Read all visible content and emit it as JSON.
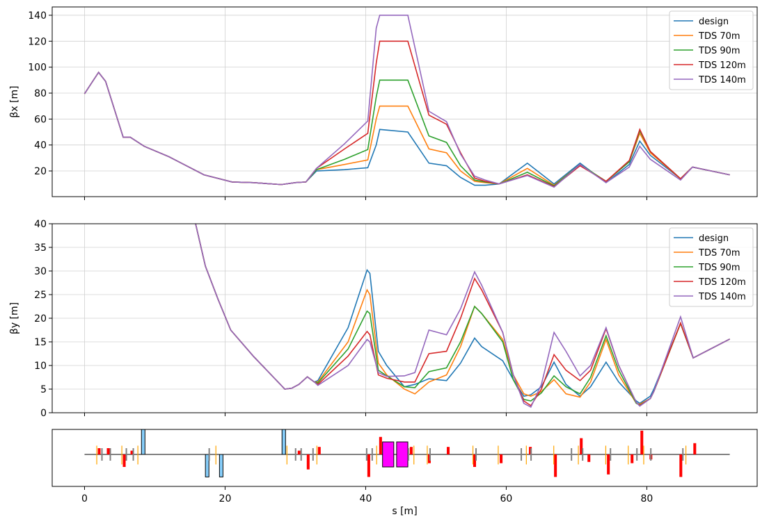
{
  "chart_data": [
    {
      "type": "line",
      "ylabel": "βx [m]",
      "xlim": [
        -4.6,
        95.7
      ],
      "xticks": [
        0,
        20,
        40,
        60,
        80
      ],
      "ylim": [
        0.2,
        146.4
      ],
      "yticks": [
        20,
        40,
        60,
        80,
        100,
        120,
        140
      ],
      "grid": true,
      "legend": "upper right",
      "x": [
        0,
        2,
        3,
        5.5,
        6.5,
        8.5,
        12,
        17,
        21,
        24,
        28,
        30,
        31.5,
        33,
        37,
        40.3,
        41.5,
        42,
        46,
        49,
        51.5,
        53.5,
        55.5,
        57,
        59,
        63,
        66.8,
        70.5,
        74.2,
        77.5,
        79,
        80.5,
        84.8,
        86.5,
        91.8
      ],
      "series": [
        {
          "name": "design",
          "color": "#1f77b4",
          "values": [
            79.5,
            96,
            89,
            46,
            46,
            39,
            31,
            17,
            11.5,
            11,
            9.5,
            11,
            11.5,
            20,
            21,
            22.5,
            40,
            52,
            50,
            26,
            24,
            15,
            9,
            9,
            10,
            26,
            10,
            26,
            11,
            25,
            43,
            32,
            14,
            23,
            17
          ]
        },
        {
          "name": "TDS 70m",
          "color": "#ff7f0e",
          "values": [
            79.5,
            96,
            89,
            46,
            46,
            39,
            31,
            17,
            11.5,
            11,
            9.5,
            11,
            11.5,
            21,
            25,
            28.5,
            60,
            70,
            70,
            37,
            34,
            20,
            12,
            11,
            10,
            22,
            9,
            25,
            12,
            27,
            49,
            34,
            14,
            23,
            17
          ]
        },
        {
          "name": "TDS 90m",
          "color": "#2ca02c",
          "values": [
            79.5,
            96,
            89,
            46,
            46,
            39,
            31,
            17,
            11.5,
            11,
            9.5,
            11,
            11.5,
            21,
            29,
            36.5,
            77,
            90,
            90,
            47,
            42,
            24,
            13,
            11.5,
            10,
            19,
            8.5,
            25,
            12,
            27,
            51,
            35,
            14,
            23,
            17
          ]
        },
        {
          "name": "TDS 120m",
          "color": "#d62728",
          "values": [
            79.5,
            96,
            89,
            46,
            46,
            39,
            31,
            17,
            11.5,
            11,
            9.5,
            11,
            11.5,
            22,
            37,
            49,
            103,
            120,
            120,
            63,
            56,
            34,
            14.5,
            12,
            10,
            17,
            8,
            24,
            12,
            28,
            52,
            35,
            14,
            23,
            17
          ]
        },
        {
          "name": "TDS 140m",
          "color": "#9467bd",
          "values": [
            79.5,
            96,
            89,
            46,
            46,
            39,
            31,
            17,
            11.5,
            11,
            9.5,
            11,
            11.5,
            22,
            41,
            58.5,
            130,
            140,
            140,
            66,
            58,
            33,
            16,
            13,
            10,
            16.5,
            7.5,
            25,
            11,
            23,
            39,
            29,
            13,
            23,
            17
          ]
        }
      ]
    },
    {
      "type": "line",
      "ylabel": "βy [m]",
      "xlim": [
        -4.6,
        95.7
      ],
      "xticks": [
        0,
        20,
        40,
        60,
        80
      ],
      "ylim": [
        0,
        40
      ],
      "yticks": [
        0,
        5,
        10,
        15,
        20,
        25,
        30,
        35,
        40
      ],
      "grid": true,
      "legend": "upper right",
      "x": [
        15.8,
        17.2,
        19,
        20.8,
        24,
        28.5,
        29.5,
        30.5,
        31.7,
        32.7,
        33.2,
        37.5,
        40.2,
        40.6,
        41.8,
        43,
        45.5,
        47,
        49,
        51.5,
        53.5,
        55.5,
        56.5,
        59.5,
        61,
        62.5,
        63.5,
        65,
        66.8,
        68.5,
        70.5,
        72,
        74.2,
        76,
        78.5,
        79,
        80.5,
        81,
        84.8,
        86.6,
        91.8
      ],
      "series": [
        {
          "name": "design",
          "color": "#1f77b4",
          "values": [
            40,
            31,
            24,
            17.5,
            12,
            5,
            5.2,
            6,
            7.6,
            6.5,
            6.8,
            18,
            30.2,
            29.5,
            13,
            10,
            5.5,
            6,
            7.2,
            6.8,
            10.5,
            15.8,
            14,
            11,
            7,
            3.5,
            3.8,
            5.5,
            10.7,
            6,
            3.5,
            5.5,
            10.7,
            6.5,
            2.5,
            2,
            3.5,
            5,
            18.9,
            11.6,
            15.6
          ]
        },
        {
          "name": "TDS 70m",
          "color": "#ff7f0e",
          "values": [
            40,
            31,
            24,
            17.5,
            12,
            5,
            5.2,
            6,
            7.6,
            6.5,
            6.5,
            15,
            26,
            25,
            10.5,
            8,
            5,
            4,
            6.5,
            8,
            14,
            22.5,
            21,
            15.5,
            8,
            4,
            3.5,
            4.5,
            7,
            4,
            3.3,
            6.5,
            15.5,
            8,
            2,
            1.8,
            3,
            4.5,
            18.9,
            11.6,
            15.6
          ]
        },
        {
          "name": "TDS 90m",
          "color": "#2ca02c",
          "values": [
            40,
            31,
            24,
            17.5,
            12,
            5,
            5.2,
            6,
            7.6,
            6.5,
            6.3,
            13.5,
            21.5,
            21,
            9,
            7.8,
            5.5,
            5.3,
            8.7,
            9.5,
            15,
            22.5,
            21,
            15,
            7,
            2.8,
            2.5,
            4.2,
            7.8,
            5.5,
            4,
            7.5,
            16.3,
            9,
            2,
            1.6,
            3,
            4.5,
            18.9,
            11.6,
            15.6
          ]
        },
        {
          "name": "TDS 120m",
          "color": "#d62728",
          "values": [
            40,
            31,
            24,
            17.5,
            12,
            5,
            5.2,
            6,
            7.6,
            6.5,
            6,
            12,
            17.2,
            16.5,
            8,
            7.3,
            6.5,
            6.5,
            12.5,
            13,
            20,
            28.4,
            26,
            17,
            8,
            2.5,
            1.5,
            5,
            12.3,
            9,
            6.8,
            9,
            17.8,
            10,
            2.2,
            1.5,
            3,
            4.5,
            19,
            11.6,
            15.6
          ]
        },
        {
          "name": "TDS 140m",
          "color": "#9467bd",
          "values": [
            40,
            31,
            24,
            17.5,
            12,
            5,
            5.2,
            6,
            7.6,
            6.5,
            5.8,
            10,
            15.5,
            15,
            8.5,
            7.7,
            7.8,
            8.5,
            17.5,
            16.5,
            22,
            29.8,
            27,
            17,
            8,
            2,
            1.2,
            6,
            17,
            13,
            7.8,
            10,
            18,
            10,
            2.2,
            1.4,
            3,
            4.5,
            20.3,
            11.6,
            15.6
          ]
        }
      ]
    },
    {
      "type": "lattice",
      "xlabel": "s [m]",
      "xlim": [
        -4.6,
        95.7
      ],
      "xticks": [
        0,
        20,
        40,
        60,
        80
      ],
      "beamline": [
        0,
        91.8
      ],
      "groups": [
        {
          "color": "#87cefa",
          "edge": "#000000",
          "elements": [
            [
              8.1,
              0.5,
              1,
              0
            ],
            [
              17.2,
              0.5,
              0,
              -0.9
            ],
            [
              19.2,
              0.5,
              0,
              -0.9
            ],
            [
              28.1,
              0.5,
              1,
              0
            ]
          ]
        },
        {
          "color": "#ff00ff",
          "edge": "#000000",
          "elements": [
            [
              42.4,
              1.6,
              0.5,
              -0.5
            ],
            [
              44.4,
              1.6,
              0.5,
              -0.5
            ]
          ]
        },
        {
          "color": "#ff0000",
          "elements": [
            [
              1.88,
              0.4,
              0.25,
              0
            ],
            [
              3.17,
              0.4,
              0.25,
              0
            ],
            [
              5.45,
              0.4,
              0,
              -0.5
            ],
            [
              6.54,
              0.4,
              0.15,
              0
            ],
            [
              30.33,
              0.4,
              0.15,
              0
            ],
            [
              31.62,
              0.4,
              0,
              -0.6
            ],
            [
              33.2,
              0.4,
              0.3,
              0
            ],
            [
              40.24,
              0.4,
              0,
              -0.9
            ],
            [
              41.92,
              0.4,
              0.7,
              0
            ],
            [
              46.28,
              0.4,
              0.3,
              0
            ],
            [
              48.86,
              0.4,
              0,
              -0.35
            ],
            [
              51.54,
              0.4,
              0.3,
              0
            ],
            [
              55.3,
              0.4,
              0,
              -0.5
            ],
            [
              59.07,
              0.4,
              0,
              -0.35
            ],
            [
              63.23,
              0.4,
              0.3,
              0
            ],
            [
              66.8,
              0.4,
              0,
              -0.9
            ],
            [
              70.47,
              0.4,
              0.65,
              0
            ],
            [
              71.56,
              0.4,
              0,
              -0.3
            ],
            [
              74.33,
              0.4,
              0,
              -0.8
            ],
            [
              77.7,
              0.4,
              0,
              -0.35
            ],
            [
              79.09,
              0.4,
              0.95,
              0
            ],
            [
              80.38,
              0.4,
              0,
              -0.2
            ],
            [
              84.64,
              0.4,
              0,
              -0.9
            ],
            [
              86.62,
              0.4,
              0.45,
              0
            ]
          ]
        },
        {
          "color": "#ffa500",
          "elements": [
            [
              1.68,
              0.12,
              0.35,
              -0.4
            ],
            [
              5.25,
              0.12,
              0.35,
              -0.4
            ],
            [
              7.53,
              0.12,
              0.35,
              -0.4
            ],
            [
              18.63,
              0.12,
              0.35,
              -0.4
            ],
            [
              28.74,
              0.12,
              0.35,
              -0.4
            ],
            [
              33.0,
              0.12,
              0.35,
              -0.4
            ],
            [
              41.5,
              0.12,
              0.35,
              -0.4
            ],
            [
              46.8,
              0.12,
              0.35,
              -0.4
            ],
            [
              48.7,
              0.12,
              0.35,
              -0.4
            ],
            [
              55.2,
              0.12,
              0.35,
              -0.4
            ],
            [
              58.8,
              0.12,
              0.35,
              -0.4
            ],
            [
              62.8,
              0.12,
              0.35,
              -0.4
            ],
            [
              66.7,
              0.12,
              0.35,
              -0.4
            ],
            [
              70.2,
              0.12,
              0.35,
              -0.4
            ],
            [
              74.1,
              0.12,
              0.35,
              -0.4
            ],
            [
              77.3,
              0.12,
              0.35,
              -0.4
            ],
            [
              79.5,
              0.12,
              0.35,
              -0.4
            ],
            [
              85.5,
              0.12,
              0.35,
              -0.4
            ]
          ]
        },
        {
          "color": "#808080",
          "elements": [
            [
              2.38,
              0.2,
              0.25,
              -0.25
            ],
            [
              3.57,
              0.2,
              0.25,
              -0.25
            ],
            [
              5.85,
              0.2,
              0.25,
              -0.25
            ],
            [
              6.84,
              0.2,
              0.25,
              -0.25
            ],
            [
              17.64,
              0.2,
              0.25,
              -0.25
            ],
            [
              29.93,
              0.2,
              0.25,
              -0.25
            ],
            [
              30.72,
              0.2,
              0.25,
              -0.25
            ],
            [
              32.41,
              0.2,
              0.25,
              -0.25
            ],
            [
              40.04,
              0.2,
              0.25,
              -0.25
            ],
            [
              40.83,
              0.2,
              0.25,
              -0.25
            ],
            [
              45.99,
              0.2,
              0.25,
              -0.25
            ],
            [
              49.06,
              0.2,
              0.25,
              -0.25
            ],
            [
              55.6,
              0.2,
              0.25,
              -0.25
            ],
            [
              62.04,
              0.2,
              0.25,
              -0.25
            ],
            [
              63.43,
              0.2,
              0.25,
              -0.25
            ],
            [
              69.18,
              0.2,
              0.25,
              -0.25
            ],
            [
              70.77,
              0.2,
              0.25,
              -0.25
            ],
            [
              74.73,
              0.2,
              0.25,
              -0.25
            ],
            [
              78.49,
              0.2,
              0.25,
              -0.25
            ],
            [
              80.47,
              0.2,
              0.25,
              -0.25
            ],
            [
              85.03,
              0.2,
              0.25,
              -0.25
            ]
          ]
        }
      ]
    }
  ]
}
